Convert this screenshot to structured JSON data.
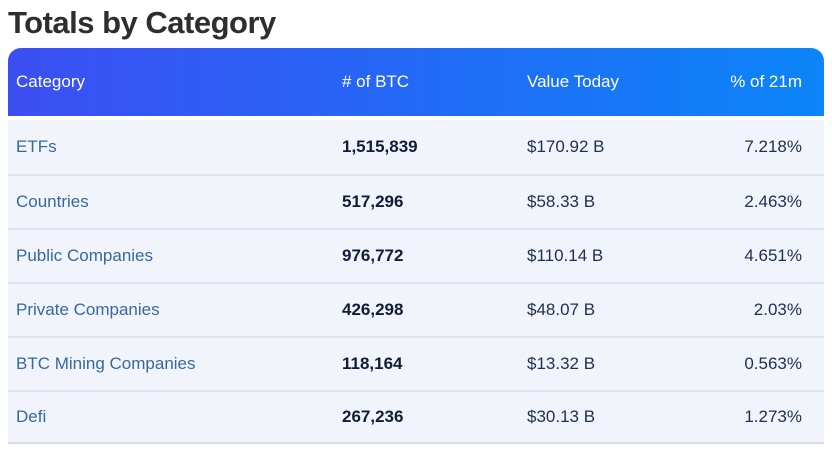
{
  "page": {
    "title": "Totals by Category"
  },
  "table": {
    "columns": [
      {
        "label": "Category",
        "align": "left"
      },
      {
        "label": "# of BTC",
        "align": "left"
      },
      {
        "label": "Value Today",
        "align": "left"
      },
      {
        "label": "% of 21m",
        "align": "right"
      }
    ],
    "rows": [
      {
        "category": "ETFs",
        "btc": "1,515,839",
        "value_today": "$170.92 B",
        "pct_of_21m": "7.218%"
      },
      {
        "category": "Countries",
        "btc": "517,296",
        "value_today": "$58.33 B",
        "pct_of_21m": "2.463%"
      },
      {
        "category": "Public Companies",
        "btc": "976,772",
        "value_today": "$110.14 B",
        "pct_of_21m": "4.651%"
      },
      {
        "category": "Private Companies",
        "btc": "426,298",
        "value_today": "$48.07 B",
        "pct_of_21m": "2.03%"
      },
      {
        "category": "BTC Mining Companies",
        "btc": "118,164",
        "value_today": "$13.32 B",
        "pct_of_21m": "0.563%"
      },
      {
        "category": "Defi",
        "btc": "267,236",
        "value_today": "$30.13 B",
        "pct_of_21m": "1.273%"
      }
    ]
  },
  "colors": {
    "header_gradient_start": "#3c4ef3",
    "header_gradient_end": "#0b85f8",
    "header_text": "#ffffff",
    "row_background": "#f2f4fc",
    "row_divider": "#dfe2f1",
    "table_bottom_border": "#d9ddee",
    "category_link": "#35699f",
    "btc_number": "#111c38",
    "value_text": "#20304f",
    "title_text": "#2e2e2e"
  }
}
